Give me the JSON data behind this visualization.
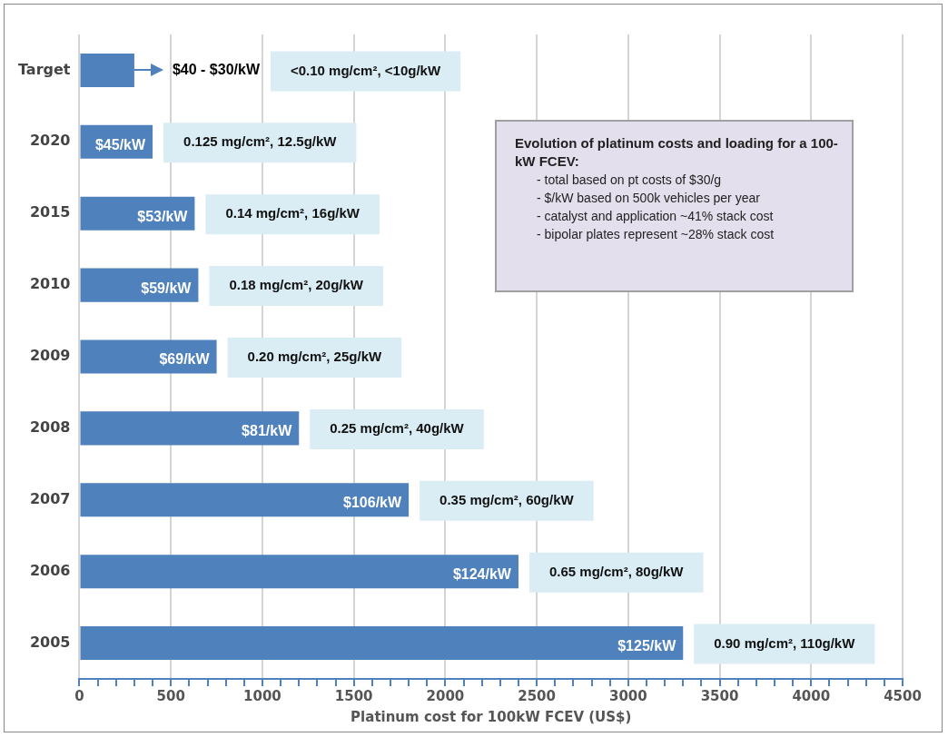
{
  "chart_data": {
    "type": "bar",
    "orientation": "horizontal",
    "xlabel": "Platinum cost for 100kW FCEV (US$)",
    "categories": [
      "Target",
      "2020",
      "2015",
      "2010",
      "2009",
      "2008",
      "2007",
      "2006",
      "2005"
    ],
    "values": [
      300,
      400,
      630,
      650,
      750,
      1200,
      1800,
      2400,
      3300
    ],
    "color": "#4f81bd",
    "xlim": [
      0,
      4500
    ],
    "xticks": [
      0,
      {
        "value": 100,
        "label": null
      },
      {
        "value": 200,
        "label": null
      },
      {
        "value": 300,
        "label": null
      },
      {
        "value": 400,
        "label": null
      },
      500,
      {
        "value": 600,
        "label": null
      },
      {
        "value": 700,
        "label": null
      },
      {
        "value": 800,
        "label": null
      },
      {
        "value": 900,
        "label": null
      },
      1000,
      {
        "value": 1100,
        "label": null
      },
      {
        "value": 1200,
        "label": null
      },
      {
        "value": 1300,
        "label": null
      },
      {
        "value": 1400,
        "label": null
      },
      1500,
      {
        "value": 1600,
        "label": null
      },
      {
        "value": 1700,
        "label": null
      },
      {
        "value": 1800,
        "label": null
      },
      {
        "value": 1900,
        "label": null
      },
      2000,
      {
        "value": 2100,
        "label": null
      },
      {
        "value": 2200,
        "label": null
      },
      {
        "value": 2300,
        "label": null
      },
      {
        "value": 2400,
        "label": null
      },
      2500,
      {
        "value": 2600,
        "label": null
      },
      {
        "value": 2700,
        "label": null
      },
      {
        "value": 2800,
        "label": null
      },
      {
        "value": 2900,
        "label": null
      },
      3000,
      {
        "value": 3100,
        "label": null
      },
      {
        "value": 3200,
        "label": null
      },
      {
        "value": 3300,
        "label": null
      },
      {
        "value": 3400,
        "label": null
      },
      3500,
      {
        "value": 3600,
        "label": null
      },
      {
        "value": 3700,
        "label": null
      },
      {
        "value": 3800,
        "label": null
      },
      {
        "value": 3900,
        "label": null
      },
      4000,
      {
        "value": 4100,
        "label": null
      },
      {
        "value": 4200,
        "label": null
      },
      {
        "value": 4300,
        "label": null
      },
      {
        "value": 4400,
        "label": null
      },
      4500
    ],
    "grid": "x",
    "legend": false,
    "annotations": [
      "Evolution of platinum costs and loading for a 100-kW FCEV:",
      "- total based on pt costs of $30/g",
      "- $/kW based on 500k vehicles per year",
      "- catalyst and application ~41% stack cost",
      "- bipolar plates represent ~28% stack cost",
      {
        "text": "$40 - $30/kW",
        "x": 300,
        "y": "Target"
      },
      "<0.10 mg/cm², <10g/kW",
      {
        "text": "$45/kW",
        "x": 400,
        "y": "2020"
      },
      {
        "text": "0.125 mg/cm², 12.5g/kW",
        "x": 400,
        "y": "2020"
      },
      {
        "text": "$53/kW",
        "x": 630,
        "y": "2015"
      },
      {
        "text": "0.14 mg/cm², 16g/kW",
        "x": 630,
        "y": "2015"
      },
      {
        "text": "$59/kW",
        "x": 650,
        "y": "2010"
      },
      {
        "text": "0.18 mg/cm², 20g/kW",
        "x": 650,
        "y": "2010"
      },
      {
        "text": "$69/kW",
        "x": 750,
        "y": "2009"
      },
      {
        "text": "0.20 mg/cm², 25g/kW",
        "x": 750,
        "y": "2009"
      },
      {
        "text": "$81/kW",
        "x": 1200,
        "y": "2008"
      },
      {
        "text": "0.25 mg/cm², 40g/kW",
        "x": 1200,
        "y": "2008"
      },
      {
        "text": "$106/kW",
        "x": 1800,
        "y": "2007"
      },
      {
        "text": "0.35 mg/cm², 60g/kW",
        "x": 1800,
        "y": "2007"
      },
      {
        "text": "$124/kW",
        "x": 2400,
        "y": "2006"
      },
      {
        "text": "0.65 mg/cm², 80g/kW",
        "x": 2400,
        "y": "2006"
      },
      {
        "text": "$125/kW",
        "x": 3300,
        "y": "2005"
      },
      {
        "text": "0.90 mg/cm², 110g/kW",
        "x": 3300,
        "y": "2005"
      }
    ]
  }
}
